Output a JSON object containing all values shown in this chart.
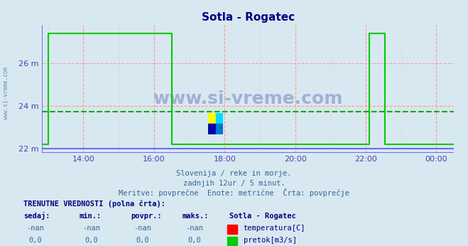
{
  "title": "Sotla - Rogatec",
  "bg_color": "#d8e8f0",
  "plot_bg_color": "#d8e8f0",
  "grid_color_major": "#ff9999",
  "ylabel_color": "#4444aa",
  "xlabel_color": "#4444aa",
  "title_color": "#000080",
  "ylim": [
    21.8,
    27.8
  ],
  "yticks": [
    22,
    24,
    26
  ],
  "ytick_labels": [
    "22 m",
    "24 m",
    "26 m"
  ],
  "xlim_hours": [
    12.83,
    24.5
  ],
  "xtick_hours": [
    14,
    16,
    18,
    20,
    22,
    24
  ],
  "xtick_labels": [
    "14:00",
    "16:00",
    "18:00",
    "20:00",
    "22:00",
    "00:00"
  ],
  "line_green_color": "#00cc00",
  "line_blue_color": "#5555ff",
  "avg_line_color": "#00aa00",
  "avg_value": 23.72,
  "watermark": "www.si-vreme.com",
  "subtitle1": "Slovenija / reke in morje.",
  "subtitle2": "zadnjih 12ur / 5 minut.",
  "subtitle3": "Meritve: povprečne  Enote: metrične  Črta: povprečje",
  "footer1": "TRENUTNE VREDNOSTI (polna črta):",
  "footer_cols": [
    "sedaj:",
    "min.:",
    "povpr.:",
    "maks.:"
  ],
  "footer_vals_temp": [
    "-nan",
    "-nan",
    "-nan",
    "-nan"
  ],
  "footer_vals_flow": [
    "0,0",
    "0,0",
    "0,0",
    "0,0"
  ],
  "legend_station": "Sotla - Rogatec",
  "legend_temp": "temperatura[C]",
  "legend_flow": "pretok[m3/s]",
  "green_data_hours": [
    12.83,
    13.0,
    13.0,
    16.5,
    16.5,
    16.55,
    22.05,
    22.1,
    22.1,
    22.55,
    22.55,
    24.5
  ],
  "green_data_vals": [
    22.2,
    22.2,
    27.4,
    27.4,
    22.2,
    22.2,
    22.2,
    22.2,
    27.4,
    27.4,
    22.2,
    22.2
  ],
  "blue_data_hours": [
    12.83,
    24.5
  ],
  "blue_data_vals": [
    22.0,
    22.0
  ]
}
